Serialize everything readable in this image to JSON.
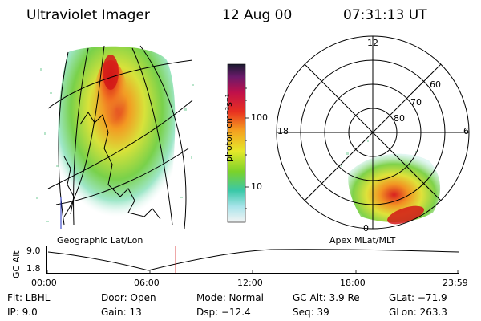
{
  "header": {
    "title": "Ultraviolet Imager",
    "date": "12 Aug 00",
    "time": "07:31:13 UT"
  },
  "colorbar": {
    "unit_label": "photon cm⁻²s⁻¹",
    "tick_100": "100",
    "tick_10": "10"
  },
  "polar": {
    "mlt_12": "12",
    "mlt_18": "18",
    "mlt_6": "6",
    "mlt_0": "0",
    "lat_60": "60",
    "lat_70": "70",
    "lat_80": "80"
  },
  "panels": {
    "left_label": "Geographic Lat/Lon",
    "right_label": "Apex MLat/MLT"
  },
  "timeline": {
    "axis_title": "GC Alt",
    "y_top": "9.0",
    "y_bottom": "1.8",
    "ticks": [
      "00:00",
      "06:00",
      "12:00",
      "18:00",
      "23:59"
    ],
    "current_time_fraction": 0.313
  },
  "info": {
    "flt": "Flt: LBHL",
    "door": "Door: Open",
    "mode": "Mode: Normal",
    "gcalt": "GC Alt: 3.9 Re",
    "glat": "GLat: −71.9",
    "ip": "IP: 9.0",
    "gain": "Gain: 13",
    "dsp": "Dsp:  −12.4",
    "seq": "Seq: 39",
    "glon": "GLon: 263.3"
  },
  "colors": {
    "accent_red": "#cc0000",
    "aurora_core": "#d21818",
    "aurora_mid": "#f08a1a",
    "aurora_low": "#7fd23a"
  }
}
